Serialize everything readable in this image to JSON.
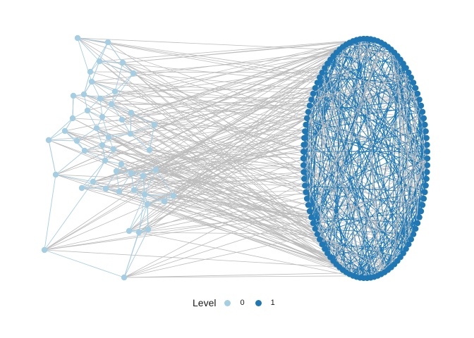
{
  "legend": {
    "title": "Level",
    "items": [
      {
        "label": "0",
        "color": "#a6cee3"
      },
      {
        "label": "1",
        "color": "#1f78b4"
      }
    ]
  },
  "colors": {
    "level0_node": "#a6cee3",
    "level1_node": "#1f78b4",
    "level0_edge": "#a6cee3",
    "level1_edge": "#1f78b4",
    "cross_edge": "#bdbdbd",
    "background": "#ffffff"
  }
}
